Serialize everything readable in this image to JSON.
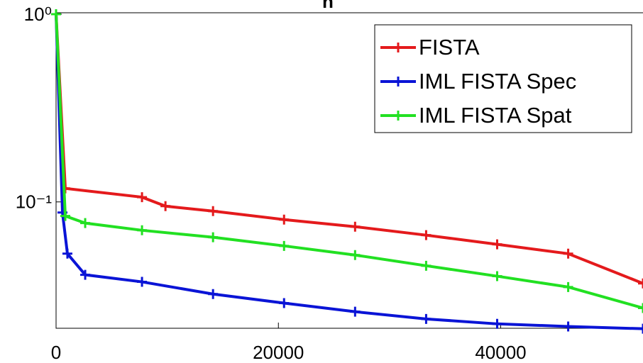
{
  "chart_data": {
    "type": "line",
    "title": "n",
    "log_y": true,
    "grid": false,
    "legend_position": "upper right",
    "xlim": [
      0,
      52800
    ],
    "xticks": [
      0,
      20000,
      40000
    ],
    "ylim": [
      0.0205,
      1
    ],
    "yticks": [
      {
        "value": 1,
        "label": "10⁰"
      },
      {
        "value": 0.1,
        "label": "10⁻¹"
      }
    ],
    "series": [
      {
        "name": "FISTA",
        "color": "#e41a1c",
        "x": [
          0,
          830,
          7730,
          9840,
          14120,
          20510,
          26900,
          33290,
          39680,
          46070,
          52800
        ],
        "values": [
          1,
          0.118,
          0.106,
          0.0949,
          0.0893,
          0.0805,
          0.0738,
          0.0665,
          0.0594,
          0.053,
          0.0368
        ]
      },
      {
        "name": "IML FISTA Spec",
        "color": "#0a14d6",
        "x": [
          0,
          575,
          1020,
          2620,
          7730,
          14120,
          20510,
          26900,
          33290,
          39680,
          46070,
          52800
        ],
        "values": [
          1,
          0.0878,
          0.053,
          0.0409,
          0.0375,
          0.0323,
          0.0289,
          0.026,
          0.0238,
          0.0224,
          0.0217,
          0.0211
        ]
      },
      {
        "name": "IML FISTA Spat",
        "color": "#22e022",
        "x": [
          0,
          830,
          2620,
          7730,
          14120,
          20510,
          26900,
          33290,
          39680,
          46070,
          52800
        ],
        "values": [
          1,
          0.0841,
          0.0771,
          0.0706,
          0.0648,
          0.0583,
          0.0521,
          0.0457,
          0.0402,
          0.0352,
          0.0272
        ]
      }
    ]
  }
}
